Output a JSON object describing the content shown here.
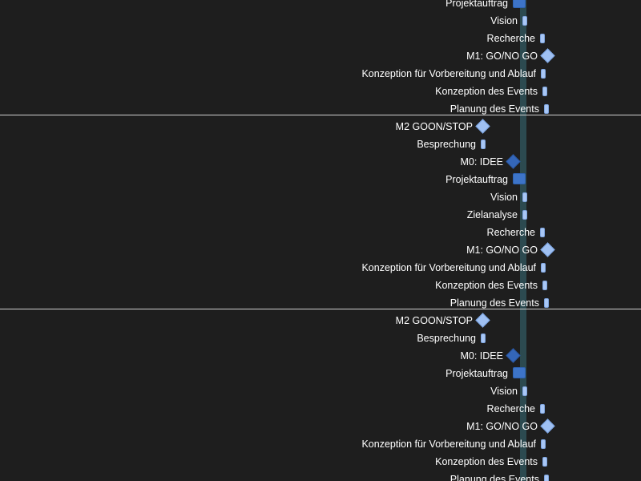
{
  "gantt": {
    "sections": [
      {
        "tasks": [
          {
            "label": "Projektauftrag",
            "kind": "bar-big"
          },
          {
            "label": "Vision",
            "kind": "bar-small"
          },
          {
            "label": "Recherche",
            "kind": "bar-small"
          },
          {
            "label": "M1: GO/NO GO",
            "kind": "milestone-light"
          },
          {
            "label": "Konzeption für Vorbereitung und Ablauf",
            "kind": "bar-small"
          },
          {
            "label": "Konzeption des Events",
            "kind": "bar-small"
          },
          {
            "label": "Planung des Events",
            "kind": "bar-small"
          }
        ]
      },
      {
        "tasks": [
          {
            "label": "M2 GOON/STOP",
            "kind": "milestone-light"
          },
          {
            "label": "Besprechung",
            "kind": "bar-small"
          },
          {
            "label": "M0: IDEE",
            "kind": "milestone-dark"
          },
          {
            "label": "Projektauftrag",
            "kind": "bar-big"
          },
          {
            "label": "Vision",
            "kind": "bar-small"
          },
          {
            "label": "Zielanalyse",
            "kind": "bar-small"
          },
          {
            "label": "Recherche",
            "kind": "bar-small"
          },
          {
            "label": "M1: GO/NO GO",
            "kind": "milestone-light"
          },
          {
            "label": "Konzeption für Vorbereitung und Ablauf",
            "kind": "bar-small"
          },
          {
            "label": "Konzeption des Events",
            "kind": "bar-small"
          },
          {
            "label": "Planung des Events",
            "kind": "bar-small"
          }
        ]
      },
      {
        "tasks": [
          {
            "label": "M2 GOON/STOP",
            "kind": "milestone-light"
          },
          {
            "label": "Besprechung",
            "kind": "bar-small"
          },
          {
            "label": "M0: IDEE",
            "kind": "milestone-dark"
          },
          {
            "label": "Projektauftrag",
            "kind": "bar-big"
          },
          {
            "label": "Vision",
            "kind": "bar-small"
          },
          {
            "label": "Recherche",
            "kind": "bar-small"
          },
          {
            "label": "M1: GO/NO GO",
            "kind": "milestone-light"
          },
          {
            "label": "Konzeption für Vorbereitung und Ablauf",
            "kind": "bar-small"
          },
          {
            "label": "Konzeption des Events",
            "kind": "bar-small"
          },
          {
            "label": "Planung des Events",
            "kind": "bar-small"
          }
        ]
      }
    ]
  }
}
